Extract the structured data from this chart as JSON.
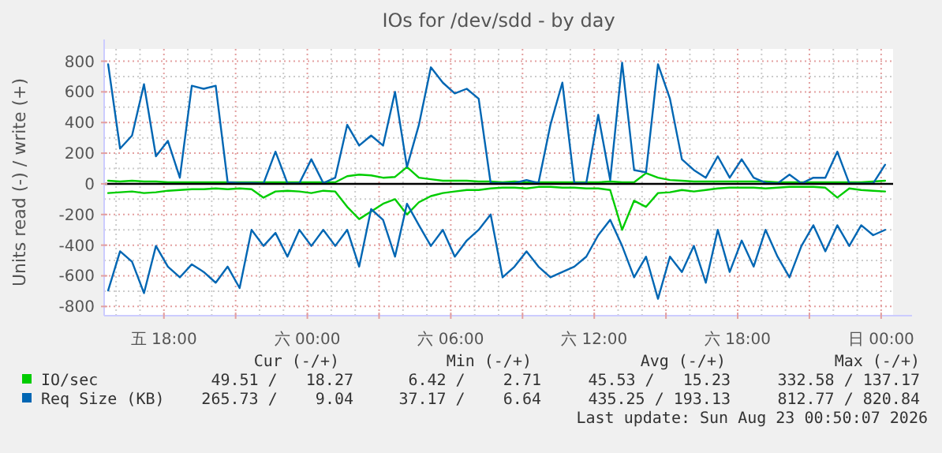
{
  "chart_data": {
    "type": "line",
    "title": "IOs for /dev/sdd - by day",
    "ylabel": "Units read (-) / write (+)",
    "x": [
      "2026-08-21T15:40",
      "2026-08-21T16:10",
      "2026-08-21T16:40",
      "2026-08-21T17:10",
      "2026-08-21T17:40",
      "2026-08-21T18:10",
      "2026-08-21T18:40",
      "2026-08-21T19:10",
      "2026-08-21T19:40",
      "2026-08-21T20:10",
      "2026-08-21T20:40",
      "2026-08-21T21:10",
      "2026-08-21T21:40",
      "2026-08-21T22:10",
      "2026-08-21T22:40",
      "2026-08-21T23:10",
      "2026-08-21T23:40",
      "2026-08-22T00:10",
      "2026-08-22T00:40",
      "2026-08-22T01:10",
      "2026-08-22T01:40",
      "2026-08-22T02:10",
      "2026-08-22T02:40",
      "2026-08-22T03:10",
      "2026-08-22T03:40",
      "2026-08-22T04:10",
      "2026-08-22T04:40",
      "2026-08-22T05:10",
      "2026-08-22T05:40",
      "2026-08-22T06:10",
      "2026-08-22T06:40",
      "2026-08-22T07:10",
      "2026-08-22T07:40",
      "2026-08-22T08:10",
      "2026-08-22T08:40",
      "2026-08-22T09:10",
      "2026-08-22T09:40",
      "2026-08-22T10:10",
      "2026-08-22T10:40",
      "2026-08-22T11:10",
      "2026-08-22T11:40",
      "2026-08-22T12:10",
      "2026-08-22T12:40",
      "2026-08-22T13:10",
      "2026-08-22T13:40",
      "2026-08-22T14:10",
      "2026-08-22T14:40",
      "2026-08-22T15:10",
      "2026-08-22T15:40",
      "2026-08-22T16:10",
      "2026-08-22T16:40",
      "2026-08-22T17:10",
      "2026-08-22T17:40",
      "2026-08-22T18:10",
      "2026-08-22T18:40",
      "2026-08-22T19:10",
      "2026-08-22T19:40",
      "2026-08-22T20:10",
      "2026-08-22T20:40",
      "2026-08-22T21:10",
      "2026-08-22T21:40",
      "2026-08-22T22:10",
      "2026-08-22T22:40",
      "2026-08-22T23:10",
      "2026-08-22T23:40",
      "2026-08-23T00:10"
    ],
    "series": [
      {
        "color": "#00cc00",
        "values": [
          -60,
          -55,
          -50,
          -60,
          -55,
          -45,
          -40,
          -35,
          -35,
          -30,
          -35,
          -30,
          -35,
          -90,
          -50,
          -45,
          -50,
          -60,
          -45,
          -50,
          -150,
          -230,
          -180,
          -130,
          -100,
          -200,
          -120,
          -80,
          -60,
          -50,
          -40,
          -40,
          -30,
          -25,
          -25,
          -30,
          -20,
          -20,
          -25,
          -25,
          -30,
          -30,
          -40,
          -300,
          -110,
          -150,
          -60,
          -55,
          -40,
          -50,
          -40,
          -30,
          -25,
          -25,
          -25,
          -30,
          -25,
          -20,
          -20,
          -20,
          -25,
          -90,
          -30,
          -40,
          -45,
          -50
        ]
      },
      {
        "name": "IO/sec",
        "color": "#00cc00",
        "values": [
          20,
          15,
          20,
          15,
          15,
          10,
          10,
          10,
          10,
          10,
          10,
          10,
          10,
          10,
          10,
          10,
          10,
          10,
          10,
          10,
          50,
          60,
          55,
          40,
          45,
          110,
          40,
          30,
          20,
          20,
          20,
          15,
          15,
          10,
          15,
          10,
          10,
          10,
          10,
          10,
          10,
          10,
          15,
          10,
          10,
          70,
          40,
          25,
          20,
          15,
          15,
          15,
          15,
          15,
          15,
          15,
          10,
          10,
          10,
          10,
          10,
          10,
          10,
          10,
          15,
          20
        ]
      },
      {
        "color": "#0066b3",
        "values": [
          -696,
          -440,
          -508,
          -713,
          -405,
          -540,
          -610,
          -525,
          -575,
          -645,
          -540,
          -680,
          -300,
          -405,
          -320,
          -475,
          -300,
          -405,
          -300,
          -405,
          -300,
          -540,
          -165,
          -235,
          -475,
          -130,
          -270,
          -405,
          -300,
          -475,
          -370,
          -300,
          -200,
          -610,
          -540,
          -440,
          -540,
          -610,
          -575,
          -540,
          -475,
          -335,
          -235,
          -405,
          -610,
          -475,
          -750,
          -475,
          -575,
          -405,
          -645,
          -300,
          -575,
          -370,
          -540,
          -300,
          -475,
          -610,
          -405,
          -270,
          -440,
          -270,
          -405,
          -270,
          -335,
          -300
        ]
      },
      {
        "name": "Req Size (KB)",
        "color": "#0066b3",
        "values": [
          780,
          230,
          315,
          650,
          180,
          280,
          40,
          640,
          620,
          640,
          10,
          5,
          5,
          3,
          210,
          3,
          5,
          160,
          5,
          40,
          385,
          250,
          315,
          250,
          600,
          110,
          385,
          760,
          660,
          590,
          620,
          555,
          5,
          5,
          5,
          25,
          5,
          385,
          660,
          5,
          5,
          450,
          25,
          790,
          90,
          75,
          780,
          555,
          160,
          90,
          40,
          180,
          40,
          160,
          40,
          7,
          3,
          60,
          3,
          40,
          40,
          210,
          3,
          3,
          3,
          125
        ]
      }
    ],
    "xlim": [
      "2026-08-21T15:30",
      "2026-08-23T00:30"
    ],
    "xticks": [
      {
        "value": "2026-08-21T18:00",
        "label": "五 18:00"
      },
      {
        "value": "2026-08-21T21:00",
        "label": null
      },
      {
        "value": "2026-08-22T00:00",
        "label": "六 00:00"
      },
      {
        "value": "2026-08-22T03:00",
        "label": null
      },
      {
        "value": "2026-08-22T06:00",
        "label": "六 06:00"
      },
      {
        "value": "2026-08-22T09:00",
        "label": null
      },
      {
        "value": "2026-08-22T12:00",
        "label": "六 12:00"
      },
      {
        "value": "2026-08-22T15:00",
        "label": null
      },
      {
        "value": "2026-08-22T18:00",
        "label": "六 18:00"
      },
      {
        "value": "2026-08-22T21:00",
        "label": null
      },
      {
        "value": "2026-08-23T00:00",
        "label": "日 00:00"
      }
    ],
    "ylim": [
      -860,
      880
    ],
    "yticks": [
      -800,
      -600,
      -400,
      -200,
      0,
      200,
      400,
      600,
      800
    ],
    "grid": true,
    "ref_lines": [
      {
        "axis": "y",
        "value": 0,
        "color": "#000000"
      }
    ],
    "line_style": "solid",
    "legend": "bottom",
    "annotations": [
      "Cur (-/+)",
      "Min (-/+)",
      "Avg (-/+)",
      "Max (-/+)",
      "49.51 /   18.27",
      "6.42 /    2.71",
      "45.53 /   15.23",
      "332.58 / 137.17",
      "265.73 /    9.04",
      "37.17 /    6.64",
      "435.25 / 193.13",
      "812.77 / 820.84",
      "Last update: Sun Aug 23 00:50:07 2026"
    ]
  }
}
